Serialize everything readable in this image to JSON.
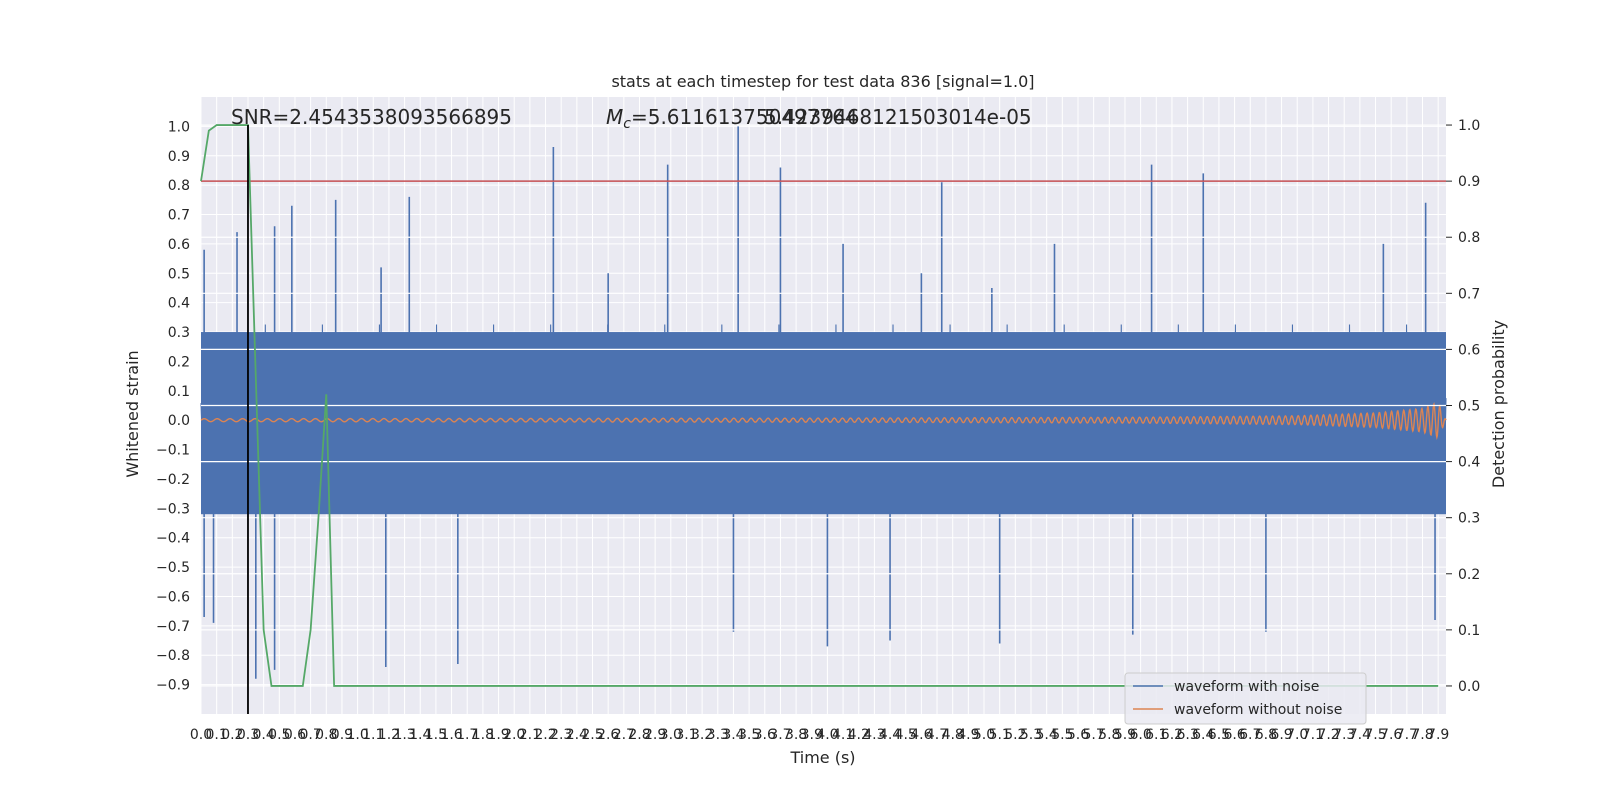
{
  "chart_data": {
    "type": "line",
    "title": "stats at each timestep for test data 836 [signal=1.0]",
    "xlabel": "Time (s)",
    "ylabel": "Whitened strain",
    "y2label": "Detection probability",
    "xlim": [
      0.0,
      7.95
    ],
    "ylim": [
      -1.0,
      1.1
    ],
    "y2lim": [
      -0.05,
      1.05
    ],
    "x_ticks": [
      "0.0",
      "0.1",
      "0.2",
      "0.3",
      "0.4",
      "0.5",
      "0.6",
      "0.7",
      "0.8",
      "0.9",
      "1.0",
      "1.1",
      "1.2",
      "1.3",
      "1.4",
      "1.5",
      "1.6",
      "1.7",
      "1.8",
      "1.9",
      "2.0",
      "2.1",
      "2.2",
      "2.3",
      "2.4",
      "2.5",
      "2.6",
      "2.7",
      "2.8",
      "2.9",
      "3.0",
      "3.1",
      "3.2",
      "3.3",
      "3.4",
      "3.5",
      "3.6",
      "3.7",
      "3.8",
      "3.9",
      "4.0",
      "4.1",
      "4.2",
      "4.3",
      "4.4",
      "4.5",
      "4.6",
      "4.7",
      "4.8",
      "4.9",
      "5.0",
      "5.1",
      "5.2",
      "5.3",
      "5.4",
      "5.5",
      "5.6",
      "5.7",
      "5.8",
      "5.9",
      "6.0",
      "6.1",
      "6.2",
      "6.3",
      "6.4",
      "6.5",
      "6.6",
      "6.7",
      "6.8",
      "6.9",
      "7.0",
      "7.1",
      "7.2",
      "7.3",
      "7.4",
      "7.5",
      "7.6",
      "7.7",
      "7.8",
      "7.9"
    ],
    "y_ticks": [
      "1.0",
      "0.9",
      "0.8",
      "0.7",
      "0.6",
      "0.5",
      "0.4",
      "0.3",
      "0.2",
      "0.1",
      "0.0",
      "−0.1",
      "−0.2",
      "−0.3",
      "−0.4",
      "−0.5",
      "−0.6",
      "−0.7",
      "−0.8",
      "−0.9"
    ],
    "y_tick_values": [
      1.0,
      0.9,
      0.8,
      0.7,
      0.6,
      0.5,
      0.4,
      0.3,
      0.2,
      0.1,
      0.0,
      -0.1,
      -0.2,
      -0.3,
      -0.4,
      -0.5,
      -0.6,
      -0.7,
      -0.8,
      -0.9
    ],
    "y2_ticks": [
      "1.0",
      "0.9",
      "0.8",
      "0.7",
      "0.6",
      "0.5",
      "0.4",
      "0.3",
      "0.2",
      "0.1",
      "0.0"
    ],
    "y2_tick_values": [
      1.0,
      0.9,
      0.8,
      0.7,
      0.6,
      0.5,
      0.4,
      0.3,
      0.2,
      0.1,
      0.0
    ],
    "grid": true,
    "legend": {
      "location": "lower right",
      "entries": [
        "waveform with noise",
        "waveform without noise"
      ]
    },
    "annotations": {
      "snr": "SNR=2.4543538093566895",
      "mc": "$M_c$=5.611613750497764",
      "overlap": "5.4239468121503014e-05"
    },
    "series": [
      {
        "name": "waveform with noise",
        "color": "#4c72b0",
        "description": "noisy whitened strain, amplitude mostly within ±0.45, peaks to about ±1.0"
      },
      {
        "name": "waveform without noise",
        "color": "#dd8452",
        "envelope": {
          "x": [
            0.0,
            2.0,
            4.0,
            6.0,
            7.0,
            7.5,
            7.8,
            7.9,
            7.95
          ],
          "amplitude": [
            0.005,
            0.006,
            0.007,
            0.01,
            0.015,
            0.025,
            0.04,
            0.06,
            0.0
          ]
        }
      },
      {
        "name": "detection probability",
        "color": "#55a868",
        "axis": "right",
        "x": [
          0.0,
          0.05,
          0.1,
          0.15,
          0.2,
          0.25,
          0.3,
          0.35,
          0.4,
          0.45,
          0.5,
          0.55,
          0.6,
          0.65,
          0.7,
          0.75,
          0.8,
          0.85,
          0.9,
          1.0,
          7.9
        ],
        "y": [
          0.9,
          0.99,
          1.0,
          1.0,
          1.0,
          1.0,
          1.0,
          0.55,
          0.1,
          0.0,
          0.0,
          0.0,
          0.0,
          0.0,
          0.1,
          0.3,
          0.52,
          0.0,
          0.0,
          0.0,
          0.0
        ]
      },
      {
        "name": "threshold",
        "color": "#c44e52",
        "axis": "right",
        "y": 0.9
      },
      {
        "name": "marker",
        "color": "#000000",
        "x": 0.3,
        "y_range": [
          -0.05,
          1.0
        ],
        "axis": "right"
      }
    ],
    "noise_peaks": [
      {
        "x": 0.02,
        "y": 0.58
      },
      {
        "x": 0.02,
        "y": -0.67
      },
      {
        "x": 0.08,
        "y": -0.69
      },
      {
        "x": 0.23,
        "y": 0.64
      },
      {
        "x": 0.35,
        "y": -0.88
      },
      {
        "x": 0.47,
        "y": 0.66
      },
      {
        "x": 0.47,
        "y": -0.85
      },
      {
        "x": 0.58,
        "y": 0.73
      },
      {
        "x": 0.86,
        "y": 0.75
      },
      {
        "x": 1.15,
        "y": 0.52
      },
      {
        "x": 1.18,
        "y": -0.84
      },
      {
        "x": 1.33,
        "y": 0.76
      },
      {
        "x": 1.64,
        "y": -0.83
      },
      {
        "x": 2.25,
        "y": 0.93
      },
      {
        "x": 2.6,
        "y": 0.5
      },
      {
        "x": 2.98,
        "y": 0.87
      },
      {
        "x": 3.4,
        "y": -0.72
      },
      {
        "x": 3.43,
        "y": 1.0
      },
      {
        "x": 3.7,
        "y": 0.86
      },
      {
        "x": 4.0,
        "y": -0.77
      },
      {
        "x": 4.1,
        "y": 0.6
      },
      {
        "x": 4.4,
        "y": -0.75
      },
      {
        "x": 4.6,
        "y": 0.5
      },
      {
        "x": 4.73,
        "y": 0.81
      },
      {
        "x": 5.05,
        "y": 0.45
      },
      {
        "x": 5.1,
        "y": -0.76
      },
      {
        "x": 5.45,
        "y": 0.6
      },
      {
        "x": 5.95,
        "y": -0.73
      },
      {
        "x": 6.07,
        "y": 0.87
      },
      {
        "x": 6.4,
        "y": 0.84
      },
      {
        "x": 6.8,
        "y": -0.72
      },
      {
        "x": 7.55,
        "y": 0.6
      },
      {
        "x": 7.82,
        "y": 0.74
      },
      {
        "x": 7.88,
        "y": -0.68
      }
    ]
  }
}
